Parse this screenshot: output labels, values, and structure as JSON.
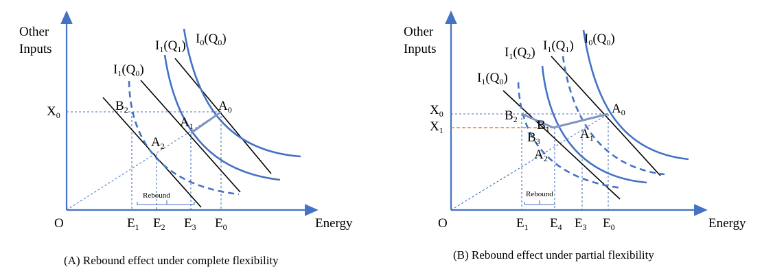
{
  "panel_a": {
    "y_axis_label_line1": "Other",
    "y_axis_label_line2": "Inputs",
    "x_axis_label": "Energy",
    "origin_label": "O",
    "curve_i0q0": {
      "main": "I",
      "sub0": "0",
      "mid": "(Q",
      "sub1": "0",
      "end": ")"
    },
    "curve_i1q1": {
      "main": "I",
      "sub0": "1",
      "mid": "(Q",
      "sub1": "1",
      "end": ")"
    },
    "curve_i1q0": {
      "main": "I",
      "sub0": "1",
      "mid": "(Q",
      "sub1": "0",
      "end": ")"
    },
    "x0": {
      "main": "X",
      "sub": "0"
    },
    "b2": {
      "main": "B",
      "sub": "2"
    },
    "a0": {
      "main": "A",
      "sub": "0"
    },
    "a1": {
      "main": "A",
      "sub": "1"
    },
    "a2": {
      "main": "A",
      "sub": "2"
    },
    "rebound": "Rebound",
    "e1": {
      "main": "E",
      "sub": "1"
    },
    "e2": {
      "main": "E",
      "sub": "2"
    },
    "e3": {
      "main": "E",
      "sub": "3"
    },
    "e0": {
      "main": "E",
      "sub": "0"
    },
    "caption": "(A) Rebound effect under complete flexibility"
  },
  "panel_b": {
    "y_axis_label_line1": "Other",
    "y_axis_label_line2": "Inputs",
    "x_axis_label": "Energy",
    "origin_label": "O",
    "curve_i0q0": {
      "main": "I",
      "sub0": "0",
      "mid": "(Q",
      "sub1": "0",
      "end": ")"
    },
    "curve_i1q1": {
      "main": "I",
      "sub0": "1",
      "mid": "(Q",
      "sub1": "1",
      "end": ")"
    },
    "curve_i1q2": {
      "main": "I",
      "sub0": "1",
      "mid": "(Q",
      "sub1": "2",
      "end": ")"
    },
    "curve_i1q0": {
      "main": "I",
      "sub0": "1",
      "mid": "(Q",
      "sub1": "0",
      "end": ")"
    },
    "x0": {
      "main": "X",
      "sub": "0"
    },
    "x1": {
      "main": "X",
      "sub": "1"
    },
    "b2": {
      "main": "B",
      "sub": "2"
    },
    "b1": {
      "main": "B",
      "sub": "1"
    },
    "b3": {
      "main": "B",
      "sub": "3"
    },
    "a0": {
      "main": "A",
      "sub": "0"
    },
    "a1": {
      "main": "A",
      "sub": "1"
    },
    "a2": {
      "main": "A",
      "sub": "2"
    },
    "rebound": "Rebound",
    "e1": {
      "main": "E",
      "sub": "1"
    },
    "e4": {
      "main": "E",
      "sub": "4"
    },
    "e3": {
      "main": "E",
      "sub": "3"
    },
    "e0": {
      "main": "E",
      "sub": "0"
    },
    "caption": "(B) Rebound effect under partial flexibility"
  },
  "colors": {
    "axis": "#4472C4",
    "isoquant": "#4472C4",
    "isocost": "#000000",
    "guide": "#4472C4",
    "x1_guide": "#ED7D31",
    "text": "#000000"
  }
}
